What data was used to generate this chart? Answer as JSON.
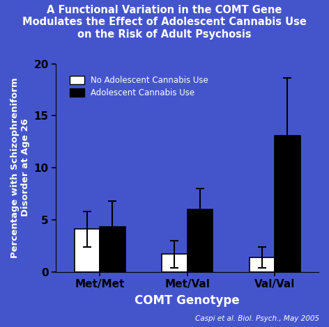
{
  "title": "A Functional Variation in the COMT Gene\nModulates the Effect of Adolescent Cannabis Use\non the Risk of Adult Psychosis",
  "xlabel": "COMT Genotype",
  "ylabel": "Percentage with Schizophreniform\nDisorder at Age 26",
  "background_color": "#4455cc",
  "text_color": "white",
  "categories": [
    "Met/Met",
    "Met/Val",
    "Val/Val"
  ],
  "no_cannabis": [
    4.1,
    1.7,
    1.4
  ],
  "cannabis": [
    4.3,
    6.0,
    13.1
  ],
  "no_cannabis_err": [
    1.7,
    1.3,
    1.0
  ],
  "cannabis_err": [
    2.5,
    2.0,
    5.5
  ],
  "ylim": [
    0,
    20
  ],
  "yticks": [
    0,
    5,
    10,
    15,
    20
  ],
  "legend_labels": [
    "No Adolescent Cannabis Use",
    "Adolescent Cannabis Use"
  ],
  "citation": "Caspi et al. Biol. Psych., May 2005",
  "bar_width": 0.32,
  "group_positions": [
    1.0,
    2.1,
    3.2
  ]
}
